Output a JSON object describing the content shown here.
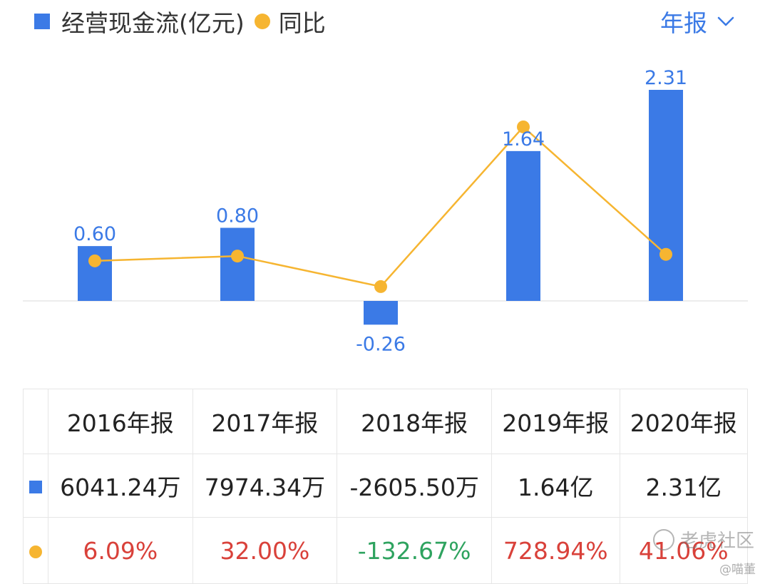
{
  "legend": {
    "bar_label": "经营现金流(亿元)",
    "line_label": "同比"
  },
  "period_selector": {
    "label": "年报"
  },
  "chart_data": {
    "type": "bar",
    "categories": [
      "2016年报",
      "2017年报",
      "2018年报",
      "2019年报",
      "2020年报"
    ],
    "series": [
      {
        "name": "经营现金流(亿元)",
        "type": "bar",
        "values": [
          0.6,
          0.8,
          -0.26,
          1.64,
          2.31
        ],
        "labels": [
          "0.60",
          "0.80",
          "-0.26",
          "1.64",
          "2.31"
        ]
      },
      {
        "name": "同比",
        "type": "line",
        "values": [
          6.09,
          32.0,
          -132.67,
          728.94,
          41.06
        ]
      }
    ],
    "bar_ylim": [
      -0.26,
      2.31
    ],
    "grid": false,
    "legend_position": "top-left"
  },
  "table": {
    "headers": [
      "2016年报",
      "2017年报",
      "2018年报",
      "2019年报",
      "2020年报"
    ],
    "cash_flow": [
      "6041.24万",
      "7974.34万",
      "-2605.50万",
      "1.64亿",
      "2.31亿"
    ],
    "yoy": [
      "6.09%",
      "32.00%",
      "-132.67%",
      "728.94%",
      "41.06%"
    ]
  },
  "colors": {
    "bar": "#3b7ae6",
    "line": "#f6b531",
    "positive": "#d9413a",
    "negative": "#2ea35f"
  },
  "watermark": {
    "main": "老虎社区",
    "sub": "@喵董"
  }
}
